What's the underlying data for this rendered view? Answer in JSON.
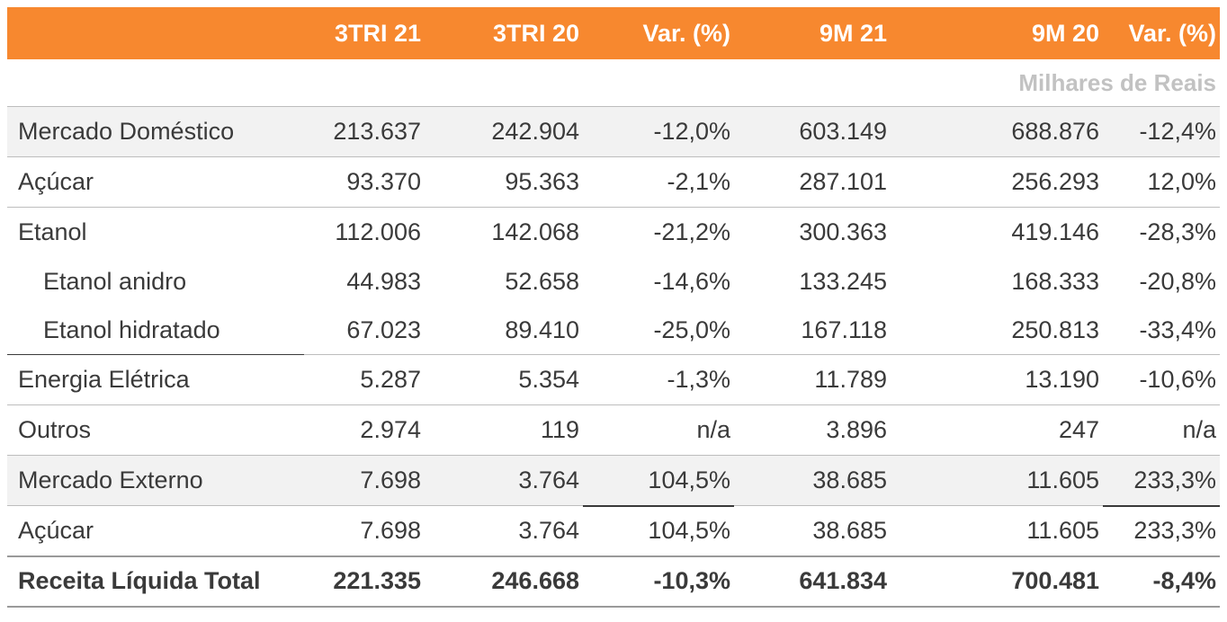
{
  "header": {
    "label": "",
    "columns": [
      "3TRI 21",
      "3TRI 20",
      "Var. (%)",
      "9M 21",
      "9M 20",
      "Var. (%)"
    ]
  },
  "units": "Milhares de Reais",
  "rows": [
    {
      "label": "Mercado Doméstico",
      "values": [
        "213.637",
        "242.904",
        "-12,0%",
        "603.149",
        "688.876",
        "-12,4%"
      ]
    },
    {
      "label": "Açúcar",
      "values": [
        "93.370",
        "95.363",
        "-2,1%",
        "287.101",
        "256.293",
        "12,0%"
      ]
    },
    {
      "label": "Etanol",
      "values": [
        "112.006",
        "142.068",
        "-21,2%",
        "300.363",
        "419.146",
        "-28,3%"
      ]
    },
    {
      "label": "Etanol anidro",
      "values": [
        "44.983",
        "52.658",
        "-14,6%",
        "133.245",
        "168.333",
        "-20,8%"
      ]
    },
    {
      "label": "Etanol hidratado",
      "values": [
        "67.023",
        "89.410",
        "-25,0%",
        "167.118",
        "250.813",
        "-33,4%"
      ]
    },
    {
      "label": "Energia Elétrica",
      "values": [
        "5.287",
        "5.354",
        "-1,3%",
        "11.789",
        "13.190",
        "-10,6%"
      ]
    },
    {
      "label": "Outros",
      "values": [
        "2.974",
        "119",
        "n/a",
        "3.896",
        "247",
        "n/a"
      ]
    },
    {
      "label": "Mercado Externo",
      "values": [
        "7.698",
        "3.764",
        "104,5%",
        "38.685",
        "11.605",
        "233,3%"
      ]
    },
    {
      "label": "Açúcar",
      "values": [
        "7.698",
        "3.764",
        "104,5%",
        "38.685",
        "11.605",
        "233,3%"
      ]
    }
  ],
  "total": {
    "label": "Receita Líquida Total",
    "values": [
      "221.335",
      "246.668",
      "-10,3%",
      "641.834",
      "700.481",
      "-8,4%"
    ]
  },
  "colors": {
    "header_bg": "#f7882f",
    "header_text": "#ffffff",
    "shade": "#f2f2f2",
    "units_text": "#c2c2c2"
  }
}
